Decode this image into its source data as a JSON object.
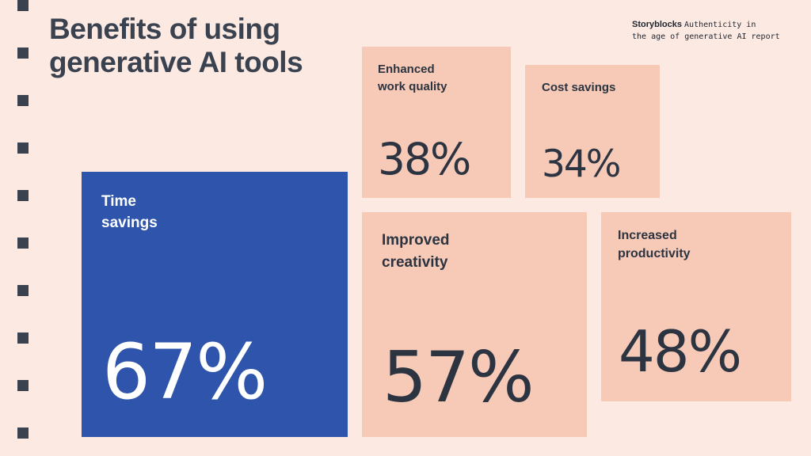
{
  "title": "Benefits of using generative AI tools",
  "source": {
    "brand": "Storyblocks",
    "report_line1": "Authenticity in",
    "report_line2": "the age of generative AI report"
  },
  "colors": {
    "background": "#fbe9e2",
    "tile": "#f7c9b7",
    "highlight": "#2e54ac",
    "text": "#2b3440"
  },
  "chart_data": {
    "type": "table",
    "title": "Benefits of using generative AI tools",
    "unit": "%",
    "items": [
      {
        "label_lines": [
          "Time",
          "savings"
        ],
        "value": 67,
        "display": "67%",
        "highlight": true
      },
      {
        "label_lines": [
          "Enhanced",
          "work quality"
        ],
        "value": 38,
        "display": "38%",
        "highlight": false
      },
      {
        "label_lines": [
          "Cost savings"
        ],
        "value": 34,
        "display": "34%",
        "highlight": false
      },
      {
        "label_lines": [
          "Improved",
          "creativity"
        ],
        "value": 57,
        "display": "57%",
        "highlight": false
      },
      {
        "label_lines": [
          "Increased",
          "productivity"
        ],
        "value": 48,
        "display": "48%",
        "highlight": false
      }
    ]
  }
}
